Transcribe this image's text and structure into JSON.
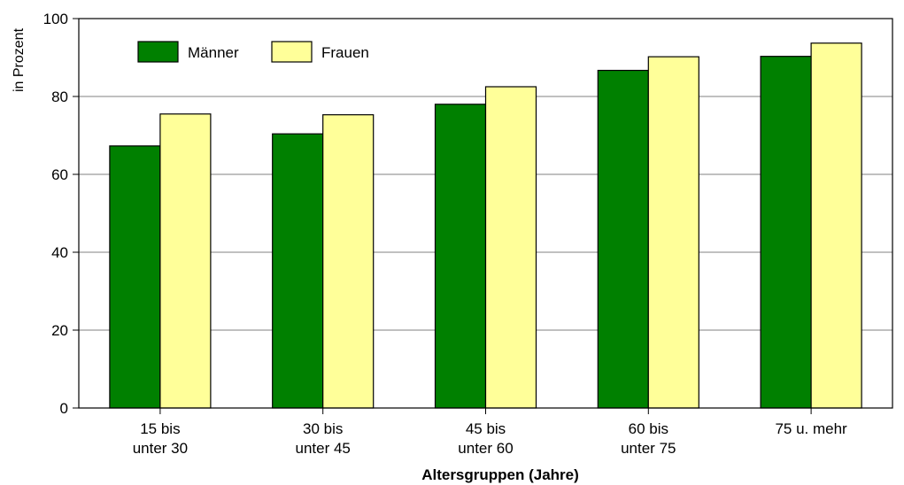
{
  "chart_data": {
    "type": "bar",
    "categories": [
      [
        "15 bis",
        "unter  30"
      ],
      [
        "30 bis",
        "unter 45"
      ],
      [
        "45 bis",
        "unter 60"
      ],
      [
        "60 bis",
        "unter 75"
      ],
      [
        "75 u. mehr"
      ]
    ],
    "series": [
      {
        "name": "Männer",
        "color": "#008000",
        "values": [
          67.3,
          70.4,
          78.0,
          86.7,
          90.3
        ]
      },
      {
        "name": "Frauen",
        "color": "#ffff99",
        "values": [
          75.5,
          75.3,
          82.5,
          90.2,
          93.7
        ]
      }
    ],
    "xlabel": "Altersgruppen (Jahre)",
    "ylabel": "in Prozent",
    "ylim": [
      0,
      100
    ],
    "yticks": [
      0,
      20,
      40,
      60,
      80,
      100
    ],
    "grid": true,
    "legend_position": "top-left"
  }
}
